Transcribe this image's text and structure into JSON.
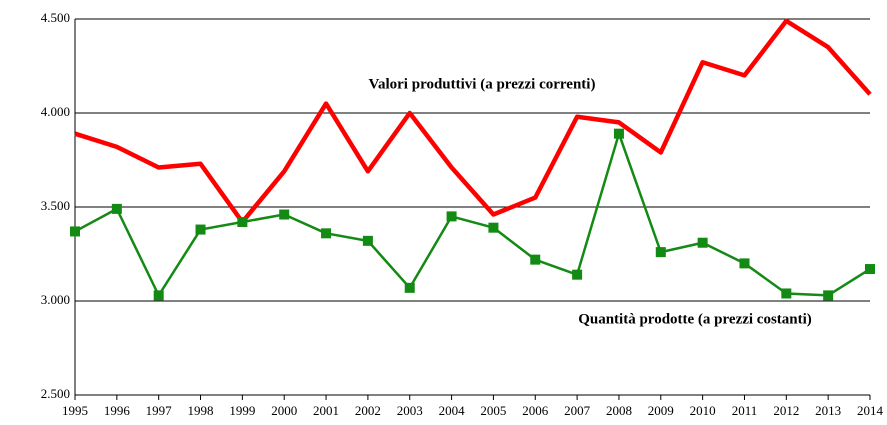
{
  "chart_data": {
    "type": "line",
    "categories": [
      "1995",
      "1996",
      "1997",
      "1998",
      "1999",
      "2000",
      "2001",
      "2002",
      "2003",
      "2004",
      "2005",
      "2006",
      "2007",
      "2008",
      "2009",
      "2010",
      "2011",
      "2012",
      "2013",
      "2014"
    ],
    "series": [
      {
        "name": "Valori produttivi (a prezzi correnti)",
        "color": "#ff0000",
        "marker": false,
        "values": [
          3890,
          3820,
          3710,
          3730,
          3420,
          3690,
          4050,
          3690,
          4000,
          3710,
          3460,
          3550,
          3980,
          3950,
          3790,
          4270,
          4200,
          4490,
          4350,
          4100
        ]
      },
      {
        "name": "Quantità prodotte (a prezzi costanti)",
        "color": "#138a13",
        "marker": true,
        "values": [
          3370,
          3490,
          3030,
          3380,
          3420,
          3460,
          3360,
          3320,
          3070,
          3450,
          3390,
          3220,
          3140,
          3890,
          3260,
          3310,
          3200,
          3040,
          3030,
          3170
        ]
      }
    ],
    "ylim": [
      2500,
      4500
    ],
    "yticks": [
      {
        "value": 2500,
        "label": "2.500"
      },
      {
        "value": 3000,
        "label": "3.000"
      },
      {
        "value": 3500,
        "label": "3.500"
      },
      {
        "value": 4000,
        "label": "4.000"
      },
      {
        "value": 4500,
        "label": "4.500"
      }
    ],
    "grid": true
  }
}
